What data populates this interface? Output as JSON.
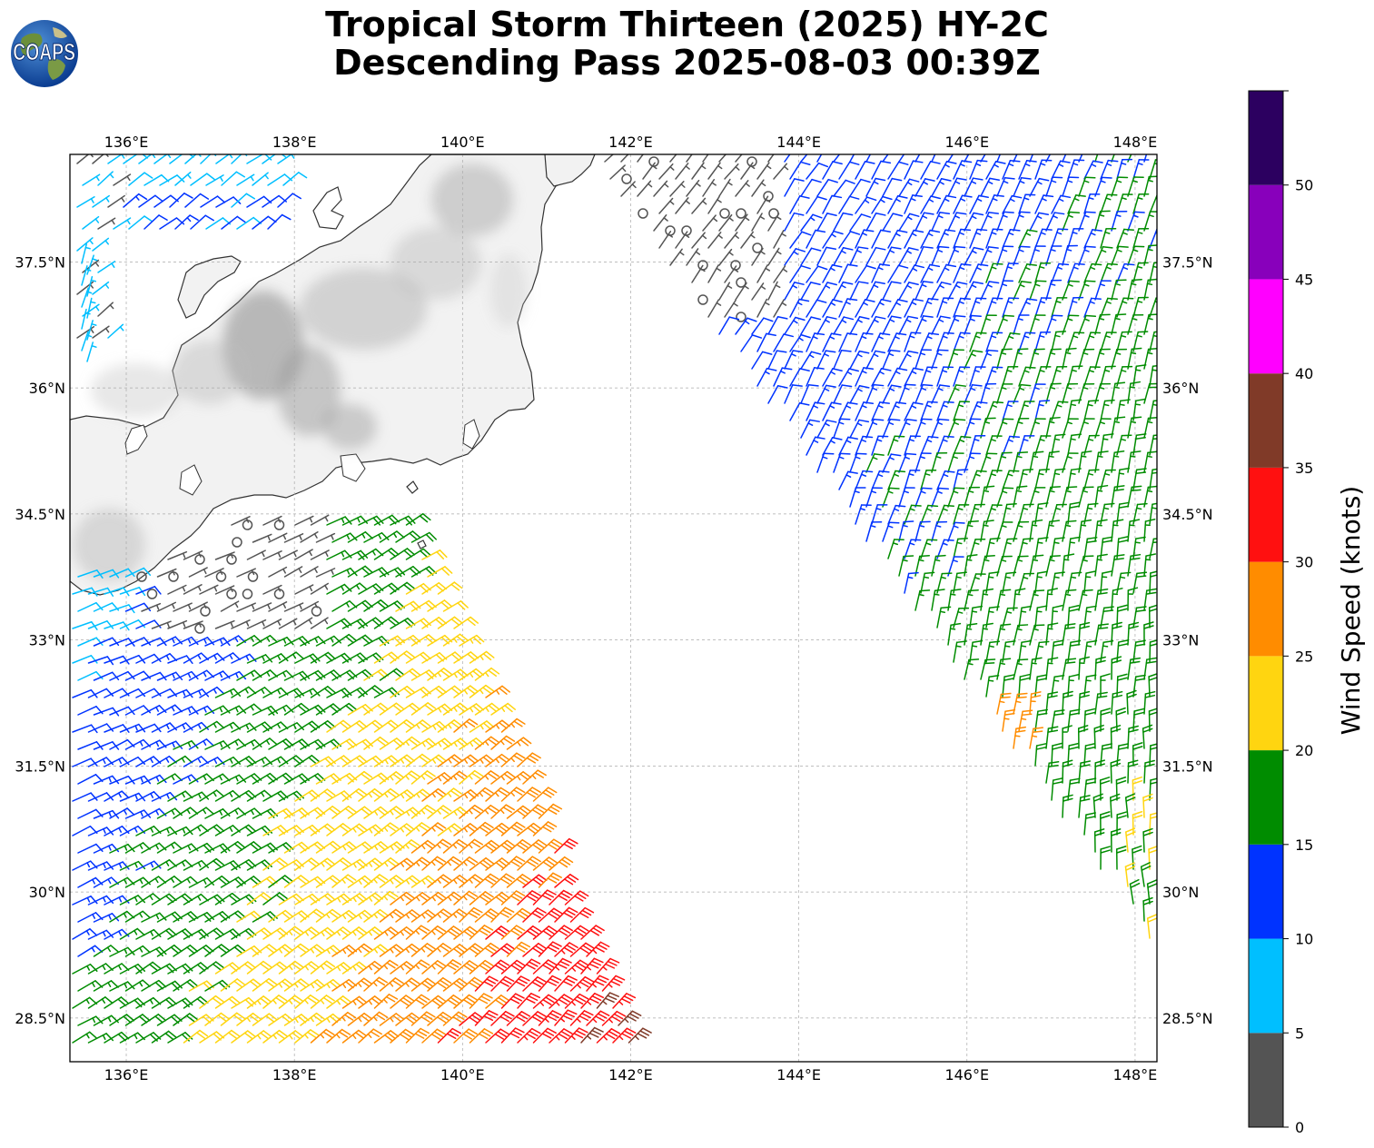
{
  "title": {
    "line1": "Tropical Storm Thirteen (2025) HY-2C",
    "line2": "Descending Pass 2025-08-03 00:39Z"
  },
  "logo": {
    "text": "COAPS",
    "icon": "globe-icon"
  },
  "map": {
    "lon_range": [
      135.33,
      148.26
    ],
    "lat_range": [
      27.98,
      38.78
    ],
    "lon_ticks": [
      "136°E",
      "138°E",
      "140°E",
      "142°E",
      "144°E",
      "146°E",
      "148°E"
    ],
    "lon_values": [
      136,
      138,
      140,
      142,
      144,
      146,
      148
    ],
    "lat_ticks": [
      "28.5°N",
      "30°N",
      "31.5°N",
      "33°N",
      "34.5°N",
      "36°N",
      "37.5°N"
    ],
    "lat_values": [
      28.5,
      30,
      31.5,
      33,
      34.5,
      36,
      37.5
    ],
    "grid": true,
    "terrain": "grayscale elevation over Japan"
  },
  "colorbar": {
    "label": "Wind Speed (knots)",
    "ticks": [
      "0",
      "5",
      "10",
      "15",
      "20",
      "25",
      "30",
      "35",
      "40",
      "45",
      "50"
    ],
    "bins": [
      {
        "min": 0,
        "max": 5,
        "color": "#545454"
      },
      {
        "min": 5,
        "max": 10,
        "color": "#00bfff"
      },
      {
        "min": 10,
        "max": 15,
        "color": "#0033ff"
      },
      {
        "min": 15,
        "max": 20,
        "color": "#008c00"
      },
      {
        "min": 20,
        "max": 25,
        "color": "#ffd510"
      },
      {
        "min": 25,
        "max": 30,
        "color": "#ff8c00"
      },
      {
        "min": 30,
        "max": 35,
        "color": "#ff1010"
      },
      {
        "min": 35,
        "max": 40,
        "color": "#803a28"
      },
      {
        "min": 40,
        "max": 45,
        "color": "#ff00ff"
      },
      {
        "min": 45,
        "max": 50,
        "color": "#8800bb"
      },
      {
        "min": 50,
        "max": 55,
        "color": "#2c0060"
      }
    ]
  }
}
